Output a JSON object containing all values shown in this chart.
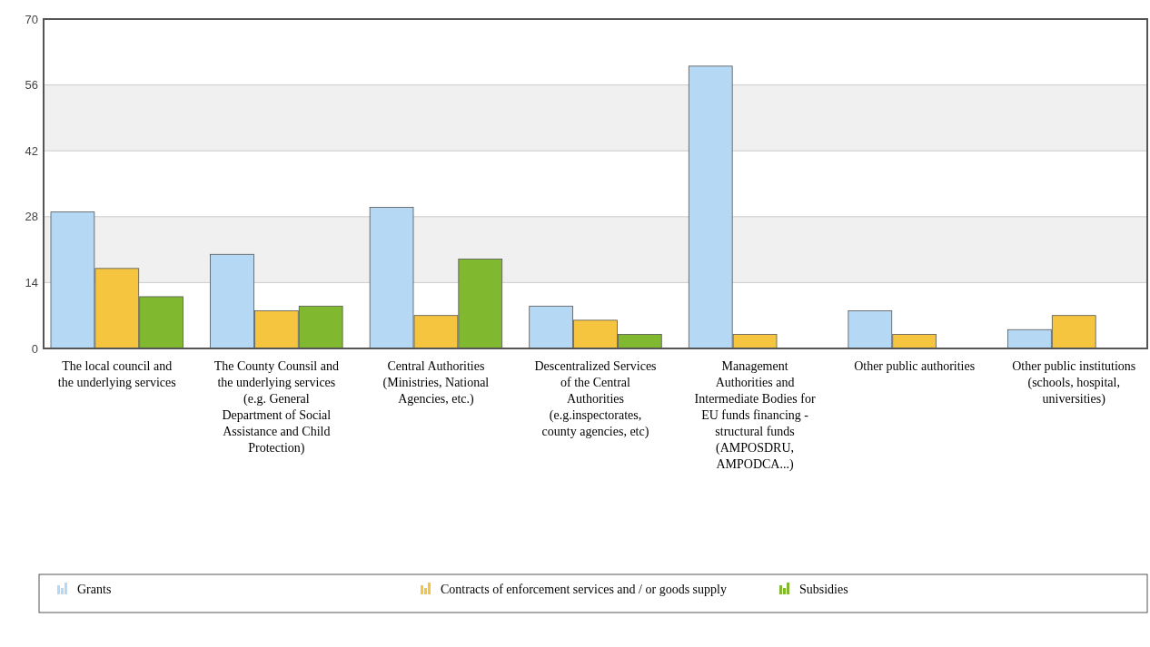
{
  "chart_data": {
    "type": "bar",
    "categories": [
      "The local council and the underlying services",
      "The County Counsil and the underlying services (e.g. General Department of Social Assistance and Child Protection)",
      "Central Authorities (Ministries, National Agencies, etc.)",
      "Descentralized Services of the Central Authorities (e.g.inspectorates, county agencies, etc)",
      "Management Authorities and Intermediate Bodies for EU funds financing - structural funds (AMPOSDRU, AMPODCA...)",
      "Other public authorities",
      "Other public institutions (schools, hospital, universities)"
    ],
    "series": [
      {
        "name": "Grants",
        "color": "#b5d8f5",
        "values": [
          29,
          20,
          30,
          9,
          60,
          8,
          4
        ]
      },
      {
        "name": "Contracts of enforcement services and / or goods supply",
        "color": "#f5c540",
        "values": [
          17,
          8,
          7,
          6,
          3,
          3,
          7
        ]
      },
      {
        "name": "Subsidies",
        "color": "#80b830",
        "values": [
          11,
          9,
          19,
          3,
          null,
          null,
          null
        ]
      }
    ],
    "ylim": [
      0,
      70
    ],
    "yticks": [
      0,
      14,
      28,
      42,
      56,
      70
    ],
    "grid": "y",
    "legend": "bottom"
  }
}
